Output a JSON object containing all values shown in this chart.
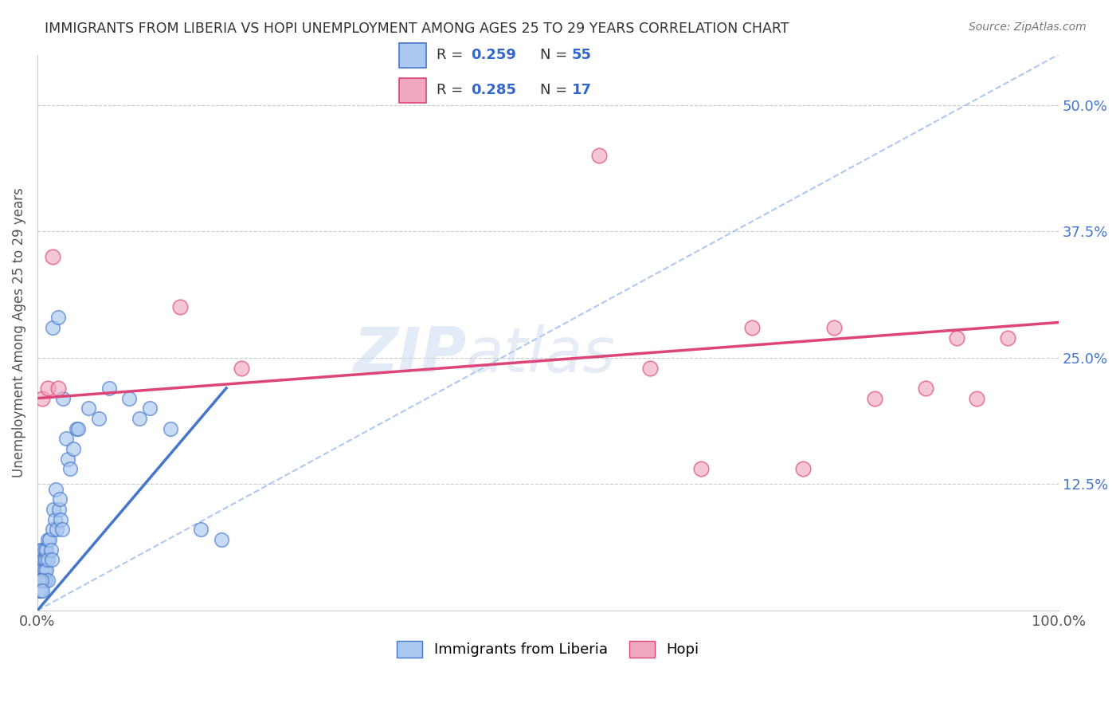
{
  "title": "IMMIGRANTS FROM LIBERIA VS HOPI UNEMPLOYMENT AMONG AGES 25 TO 29 YEARS CORRELATION CHART",
  "source": "Source: ZipAtlas.com",
  "ylabel": "Unemployment Among Ages 25 to 29 years",
  "xlim": [
    0,
    1.0
  ],
  "ylim": [
    0,
    0.55
  ],
  "xtick_labels": [
    "0.0%",
    "100.0%"
  ],
  "xtick_vals": [
    0.0,
    1.0
  ],
  "ytick_labels": [
    "12.5%",
    "25.0%",
    "37.5%",
    "50.0%"
  ],
  "ytick_vals": [
    0.125,
    0.25,
    0.375,
    0.5
  ],
  "watermark_zip": "ZIP",
  "watermark_atlas": "atlas",
  "blue_color": "#aac8f0",
  "pink_color": "#f0a8c0",
  "blue_line_color": "#4477cc",
  "pink_line_color": "#dd4477",
  "diag_color": "#99bbee",
  "title_color": "#333333",
  "label_color": "#555555",
  "tick_label_color": "#4477cc",
  "legend_value_color": "#3366cc",
  "legend_text_color": "#333333",
  "blue_scatter_x": [
    0.001,
    0.002,
    0.002,
    0.003,
    0.003,
    0.004,
    0.004,
    0.005,
    0.005,
    0.006,
    0.006,
    0.007,
    0.007,
    0.008,
    0.008,
    0.009,
    0.009,
    0.01,
    0.01,
    0.01,
    0.012,
    0.013,
    0.014,
    0.015,
    0.015,
    0.016,
    0.017,
    0.018,
    0.019,
    0.02,
    0.021,
    0.022,
    0.023,
    0.024,
    0.025,
    0.028,
    0.03,
    0.032,
    0.035,
    0.038,
    0.04,
    0.05,
    0.06,
    0.07,
    0.09,
    0.1,
    0.11,
    0.13,
    0.16,
    0.18,
    0.001,
    0.002,
    0.003,
    0.004,
    0.005
  ],
  "blue_scatter_y": [
    0.04,
    0.05,
    0.03,
    0.06,
    0.04,
    0.05,
    0.03,
    0.06,
    0.04,
    0.05,
    0.03,
    0.04,
    0.06,
    0.05,
    0.03,
    0.04,
    0.06,
    0.05,
    0.07,
    0.03,
    0.07,
    0.06,
    0.05,
    0.28,
    0.08,
    0.1,
    0.09,
    0.12,
    0.08,
    0.29,
    0.1,
    0.11,
    0.09,
    0.08,
    0.21,
    0.17,
    0.15,
    0.14,
    0.16,
    0.18,
    0.18,
    0.2,
    0.19,
    0.22,
    0.21,
    0.19,
    0.2,
    0.18,
    0.08,
    0.07,
    0.02,
    0.03,
    0.02,
    0.03,
    0.02
  ],
  "pink_scatter_x": [
    0.005,
    0.01,
    0.015,
    0.02,
    0.14,
    0.2,
    0.55,
    0.6,
    0.65,
    0.7,
    0.75,
    0.78,
    0.82,
    0.87,
    0.9,
    0.92,
    0.95
  ],
  "pink_scatter_y": [
    0.21,
    0.22,
    0.35,
    0.22,
    0.3,
    0.24,
    0.45,
    0.24,
    0.14,
    0.28,
    0.14,
    0.28,
    0.21,
    0.22,
    0.27,
    0.21,
    0.27
  ],
  "blue_line_x": [
    0.0,
    0.185
  ],
  "blue_line_y": [
    0.0,
    0.22
  ],
  "pink_line_x": [
    0.0,
    1.0
  ],
  "pink_line_y": [
    0.21,
    0.285
  ],
  "diag_line_x": [
    0.0,
    1.0
  ],
  "diag_line_y": [
    0.0,
    0.55
  ]
}
